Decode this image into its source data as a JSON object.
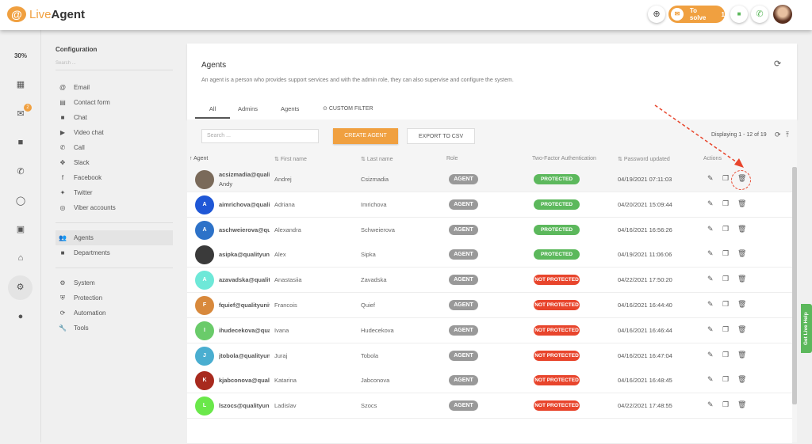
{
  "header": {
    "logo_live": "Live",
    "logo_agent": "Agent",
    "to_solve_label": "To solve",
    "to_solve_count": "1"
  },
  "rail": {
    "load": "30%",
    "mail_badge": "2"
  },
  "config": {
    "title": "Configuration",
    "search_placeholder": "Search ...",
    "group1": [
      {
        "icon": "@",
        "label": "Email"
      },
      {
        "icon": "▤",
        "label": "Contact form"
      },
      {
        "icon": "■",
        "label": "Chat"
      },
      {
        "icon": "▶",
        "label": "Video chat"
      },
      {
        "icon": "✆",
        "label": "Call"
      },
      {
        "icon": "✥",
        "label": "Slack"
      },
      {
        "icon": "f",
        "label": "Facebook"
      },
      {
        "icon": "✦",
        "label": "Twitter"
      },
      {
        "icon": "◎",
        "label": "Viber accounts"
      }
    ],
    "group2": [
      {
        "icon": "👥",
        "label": "Agents"
      },
      {
        "icon": "■",
        "label": "Departments"
      }
    ],
    "group3": [
      {
        "icon": "⚙",
        "label": "System"
      },
      {
        "icon": "⛨",
        "label": "Protection"
      },
      {
        "icon": "⟳",
        "label": "Automation"
      },
      {
        "icon": "🔧",
        "label": "Tools"
      }
    ]
  },
  "page": {
    "title": "Agents",
    "description": "An agent is a person who provides support services and with the admin role, they can also supervise and configure the system.",
    "tabs": [
      "All",
      "Admins",
      "Agents",
      "CUSTOM FILTER"
    ]
  },
  "toolbar": {
    "search_placeholder": "Search ...",
    "create": "CREATE AGENT",
    "export": "EXPORT TO CSV",
    "displaying": "Displaying 1 - 12 of 19"
  },
  "columns": [
    "Agent",
    "First name",
    "Last name",
    "Role",
    "Two-Factor Authentication",
    "Password updated",
    "Actions"
  ],
  "colors": {
    "accent": "#f0a040",
    "protected": "#5cb85c",
    "not_protected": "#e8452c"
  },
  "rows": [
    {
      "email": "acsizmadia@qualityunit.com",
      "nick": "Andy",
      "first": "Andrej",
      "last": "Csizmadia",
      "role": "AGENT",
      "tfa": "PROTECTED",
      "pw": "04/19/2021 07:11:03",
      "initial": "",
      "color": "#7a6a5a"
    },
    {
      "email": "aimrichova@qualityunit.com",
      "first": "Adriana",
      "last": "Imrichova",
      "role": "AGENT",
      "tfa": "PROTECTED",
      "pw": "04/20/2021 15:09:44",
      "initial": "A",
      "color": "#1f57d6"
    },
    {
      "email": "aschweierova@qualityunit.com",
      "first": "Alexandra",
      "last": "Schweierova",
      "role": "AGENT",
      "tfa": "PROTECTED",
      "pw": "04/16/2021 16:56:26",
      "initial": "A",
      "color": "#2d72c8"
    },
    {
      "email": "asipka@qualityunit.com",
      "first": "Alex",
      "last": "Sipka",
      "role": "AGENT",
      "tfa": "PROTECTED",
      "pw": "04/19/2021 11:06:06",
      "initial": "",
      "color": "#3a3a3a"
    },
    {
      "email": "azavadska@qualityunit.com",
      "first": "Anastasiia",
      "last": "Zavadska",
      "role": "AGENT",
      "tfa": "NOT PROTECTED",
      "pw": "04/22/2021 17:50:20",
      "initial": "A",
      "color": "#6ee8d8"
    },
    {
      "email": "fquief@qualityunit.com",
      "first": "Francois",
      "last": "Quief",
      "role": "AGENT",
      "tfa": "NOT PROTECTED",
      "pw": "04/16/2021 16:44:40",
      "initial": "F",
      "color": "#d8893c"
    },
    {
      "email": "ihudecekova@qualityunit.com",
      "first": "Ivana",
      "last": "Hudecekova",
      "role": "AGENT",
      "tfa": "NOT PROTECTED",
      "pw": "04/16/2021 16:46:44",
      "initial": "I",
      "color": "#6acb6a"
    },
    {
      "email": "jtobola@qualityunit.com",
      "first": "Juraj",
      "last": "Tobola",
      "role": "AGENT",
      "tfa": "NOT PROTECTED",
      "pw": "04/16/2021 16:47:04",
      "initial": "J",
      "color": "#4aaed0"
    },
    {
      "email": "kjabconova@qualityunit.com",
      "first": "Katarina",
      "last": "Jabconova",
      "role": "AGENT",
      "tfa": "NOT PROTECTED",
      "pw": "04/16/2021 16:48:45",
      "initial": "K",
      "color": "#a82a1e"
    },
    {
      "email": "lszocs@qualityunit.com",
      "first": "Ladislav",
      "last": "Szocs",
      "role": "AGENT",
      "tfa": "NOT PROTECTED",
      "pw": "04/22/2021 17:48:55",
      "initial": "L",
      "color": "#6ae84a"
    }
  ],
  "help": "Get Live Help"
}
